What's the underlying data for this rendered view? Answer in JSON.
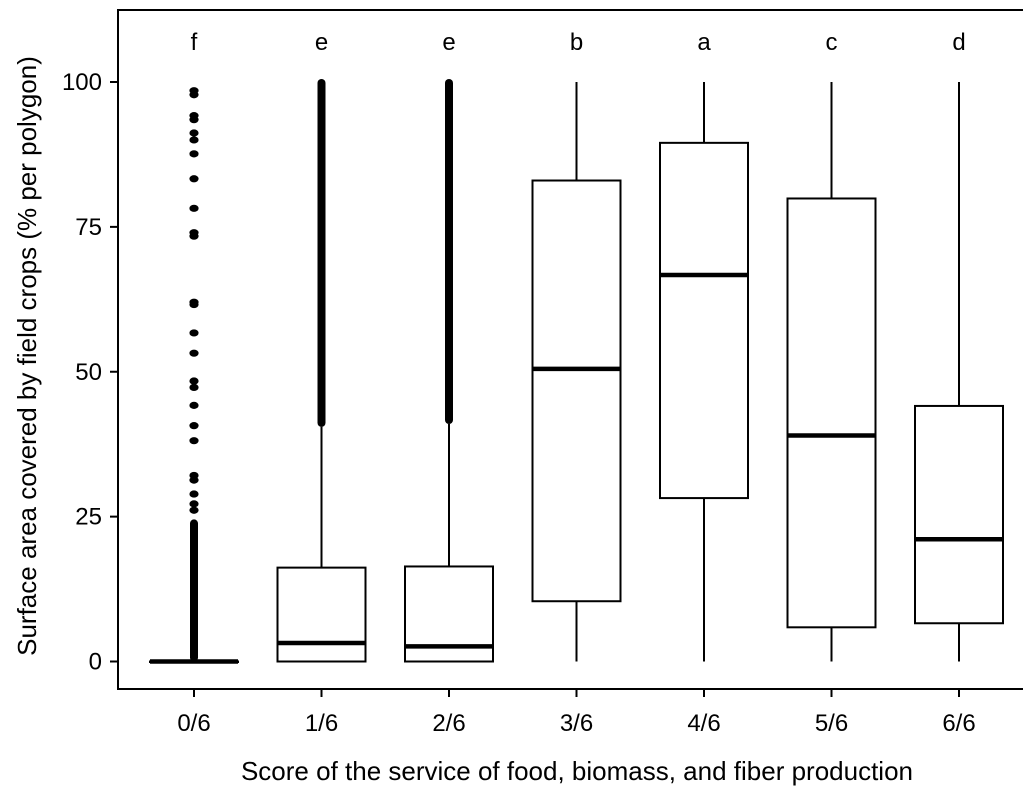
{
  "chart_data": {
    "type": "box",
    "xlabel": "Score of the service of food, biomass, and fiber production",
    "ylabel": "Surface area covered by field crops (% per polygon)",
    "ylim": [
      -4.5,
      112
    ],
    "yticks": [
      0,
      25,
      50,
      75,
      100
    ],
    "grid": false,
    "categories": [
      "0/6",
      "1/6",
      "2/6",
      "3/6",
      "4/6",
      "5/6",
      "6/6"
    ],
    "group_letters": [
      "f",
      "e",
      "e",
      "b",
      "a",
      "c",
      "d"
    ],
    "boxes": [
      {
        "category": "0/6",
        "min": 0,
        "q1": 0,
        "median": 0,
        "q3": 0,
        "max": 0,
        "outliers_continuous_from": 0.5,
        "outliers_continuous_to": 24,
        "outliers": [
          98.5,
          97.8,
          94.2,
          93.5,
          91.2,
          90.0,
          87.6,
          83.3,
          78.2,
          74.0,
          73.4,
          62.0,
          61.6,
          56.7,
          53.2,
          48.4,
          47.3,
          44.2,
          40.7,
          38.1,
          32.1,
          31.3,
          28.9,
          27.2,
          26.1
        ]
      },
      {
        "category": "1/6",
        "min": 0,
        "q1": 0,
        "median": 3.2,
        "q3": 16.2,
        "max": 40.5,
        "outliers_continuous_from": 41,
        "outliers_continuous_to": 100
      },
      {
        "category": "2/6",
        "min": 0,
        "q1": 0,
        "median": 2.6,
        "q3": 16.4,
        "max": 41.0,
        "outliers_continuous_from": 41.5,
        "outliers_continuous_to": 100
      },
      {
        "category": "3/6",
        "min": 0,
        "q1": 10.4,
        "median": 50.5,
        "q3": 83.0,
        "max": 100
      },
      {
        "category": "4/6",
        "min": 0,
        "q1": 28.2,
        "median": 66.7,
        "q3": 89.5,
        "max": 100
      },
      {
        "category": "5/6",
        "min": 0,
        "q1": 5.9,
        "median": 39.0,
        "q3": 79.9,
        "max": 100
      },
      {
        "category": "6/6",
        "min": 0,
        "q1": 6.6,
        "median": 21.1,
        "q3": 44.1,
        "max": 100
      }
    ]
  }
}
